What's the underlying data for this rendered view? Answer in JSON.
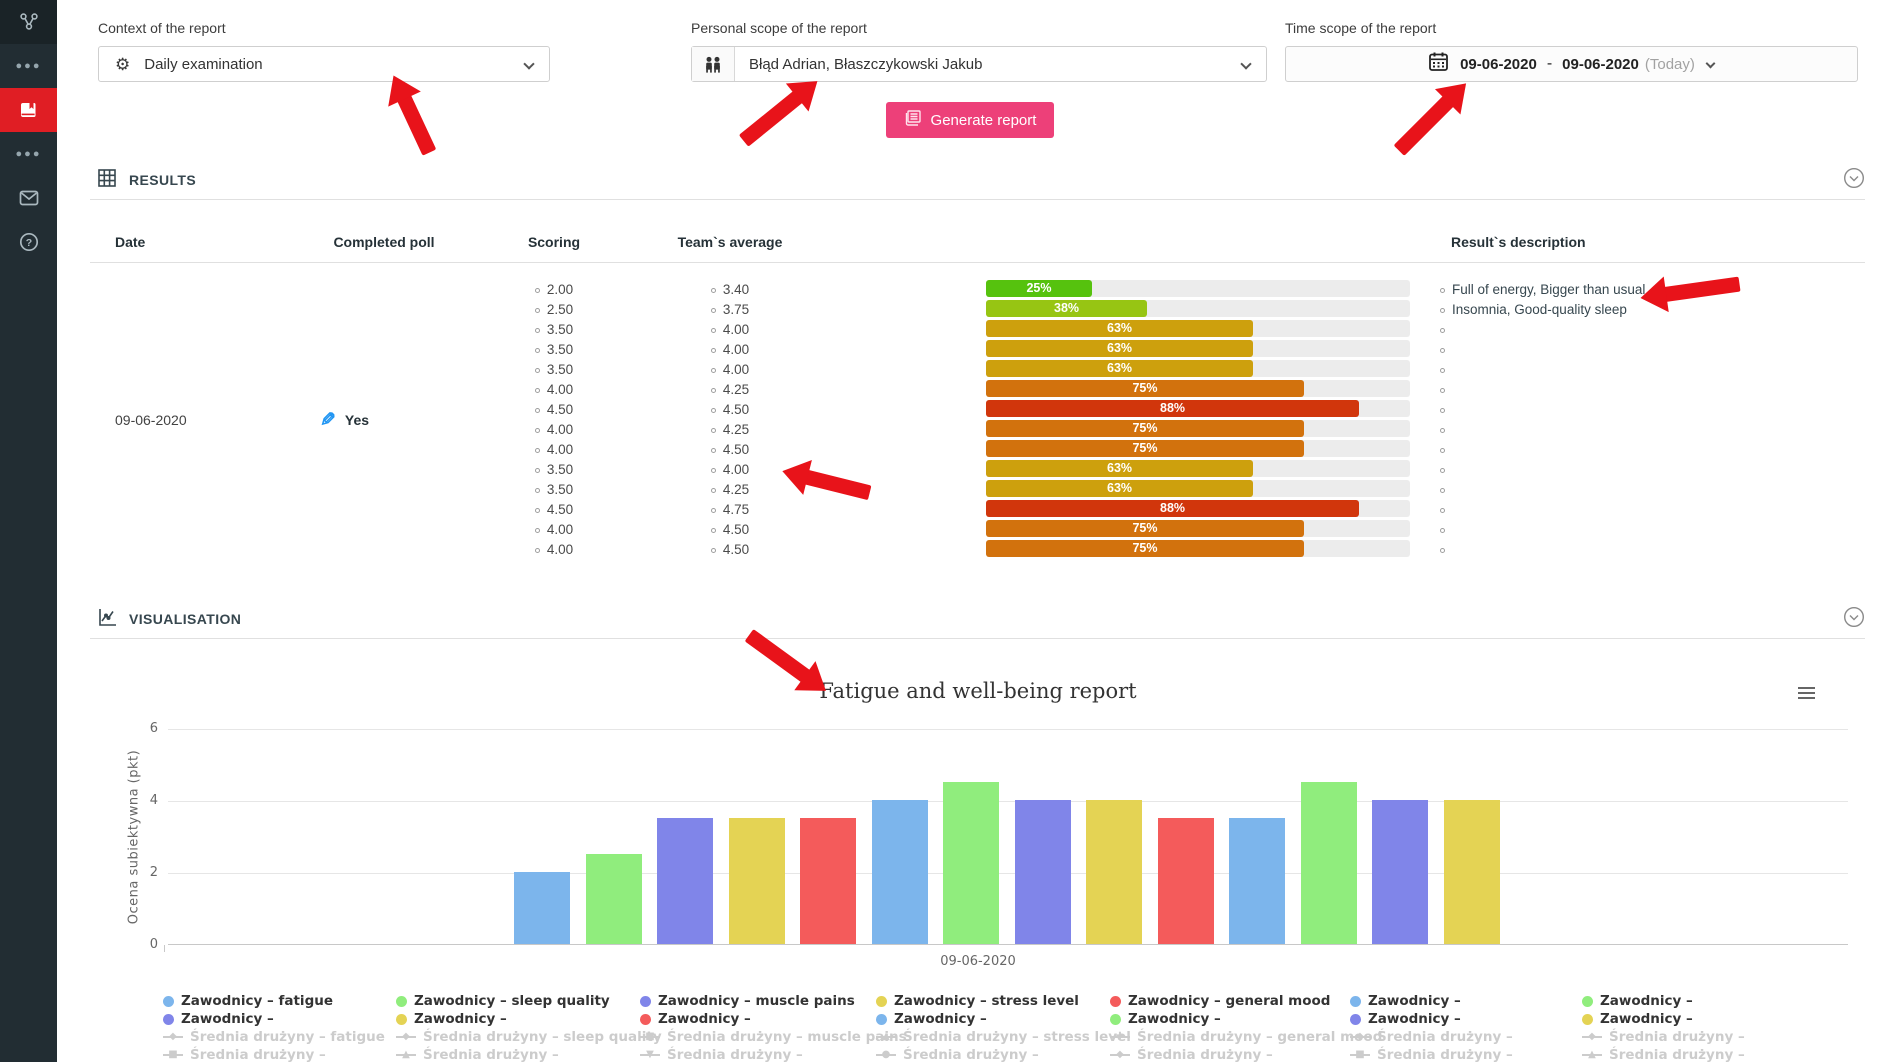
{
  "sidebar": {
    "items": [
      {
        "icon": "org-chart-icon"
      },
      {
        "icon": "ellipsis-icon"
      },
      {
        "icon": "reports-book-icon",
        "active": true
      },
      {
        "icon": "ellipsis-icon"
      },
      {
        "icon": "mail-icon"
      },
      {
        "icon": "help-icon"
      }
    ],
    "active_color": "#e01e24"
  },
  "filters": {
    "context": {
      "label": "Context of the report",
      "value": "Daily examination",
      "icon": "gear-icon"
    },
    "personal": {
      "label": "Personal scope of the report",
      "value": "Błąd Adrian, Błaszczykowski Jakub",
      "icon": "people-icon"
    },
    "time": {
      "label": "Time scope of the report",
      "from": "09-06-2020",
      "separator": "-",
      "to": "09-06-2020",
      "suffix": "(Today)",
      "icon": "calendar-icon"
    },
    "generate_label": "Generate report",
    "generate_color": "#ed4079"
  },
  "results": {
    "section_title": "RESULTS",
    "columns": [
      "Date",
      "Completed poll",
      "Scoring",
      "Team`s average",
      "Result`s description"
    ],
    "row": {
      "date": "09-06-2020",
      "completed": "Yes"
    },
    "entries": [
      {
        "scoring": "2.00",
        "team_avg": "3.40",
        "pct": 25,
        "color": "#56c20e",
        "description": "Full of energy, Bigger than usual"
      },
      {
        "scoring": "2.50",
        "team_avg": "3.75",
        "pct": 38,
        "color": "#97c513",
        "description": "Insomnia, Good-quality sleep"
      },
      {
        "scoring": "3.50",
        "team_avg": "4.00",
        "pct": 63,
        "color": "#cda00d",
        "description": ""
      },
      {
        "scoring": "3.50",
        "team_avg": "4.00",
        "pct": 63,
        "color": "#cda00d",
        "description": ""
      },
      {
        "scoring": "3.50",
        "team_avg": "4.00",
        "pct": 63,
        "color": "#cda00d",
        "description": ""
      },
      {
        "scoring": "4.00",
        "team_avg": "4.25",
        "pct": 75,
        "color": "#d2720d",
        "description": ""
      },
      {
        "scoring": "4.50",
        "team_avg": "4.50",
        "pct": 88,
        "color": "#d1360c",
        "description": ""
      },
      {
        "scoring": "4.00",
        "team_avg": "4.25",
        "pct": 75,
        "color": "#d2720d",
        "description": ""
      },
      {
        "scoring": "4.00",
        "team_avg": "4.50",
        "pct": 75,
        "color": "#d2720d",
        "description": ""
      },
      {
        "scoring": "3.50",
        "team_avg": "4.00",
        "pct": 63,
        "color": "#cda00d",
        "description": ""
      },
      {
        "scoring": "3.50",
        "team_avg": "4.25",
        "pct": 63,
        "color": "#cda00d",
        "description": ""
      },
      {
        "scoring": "4.50",
        "team_avg": "4.75",
        "pct": 88,
        "color": "#d1360c",
        "description": ""
      },
      {
        "scoring": "4.00",
        "team_avg": "4.50",
        "pct": 75,
        "color": "#d2720d",
        "description": ""
      },
      {
        "scoring": "4.00",
        "team_avg": "4.50",
        "pct": 75,
        "color": "#d2720d",
        "description": ""
      }
    ]
  },
  "visualisation": {
    "section_title": "VISUALISATION",
    "chart_data": {
      "type": "bar",
      "title": "Fatigue and well-being report",
      "ylabel": "Ocena subiektywna (pkt)",
      "xlabel": "",
      "category": "09-06-2020",
      "ylim": [
        0,
        6
      ],
      "yticks": [
        0,
        2,
        4,
        6
      ],
      "grid": true,
      "legend_position": "bottom",
      "bars": [
        {
          "value": 2.0,
          "color": "#7cb5ec"
        },
        {
          "value": 2.5,
          "color": "#90ed7d"
        },
        {
          "value": 3.5,
          "color": "#8085e9"
        },
        {
          "value": 3.5,
          "color": "#e4d354"
        },
        {
          "value": 3.5,
          "color": "#f45b5b"
        },
        {
          "value": 4.0,
          "color": "#7cb5ec"
        },
        {
          "value": 4.5,
          "color": "#90ed7d"
        },
        {
          "value": 4.0,
          "color": "#8085e9"
        },
        {
          "value": 4.0,
          "color": "#e4d354"
        },
        {
          "value": 3.5,
          "color": "#f45b5b"
        },
        {
          "value": 3.5,
          "color": "#7cb5ec"
        },
        {
          "value": 4.5,
          "color": "#90ed7d"
        },
        {
          "value": 4.0,
          "color": "#8085e9"
        },
        {
          "value": 4.0,
          "color": "#e4d354"
        }
      ],
      "legend_columns": [
        {
          "items": [
            {
              "label": "Zawodnicy – fatigue",
              "marker": "circle",
              "color": "#7cb5ec",
              "enabled": true
            },
            {
              "label": "Zawodnicy –",
              "marker": "circle",
              "color": "#8085e9",
              "enabled": true
            },
            {
              "label": "Średnia drużyny – fatigue",
              "marker": "diamond",
              "enabled": false
            },
            {
              "label": "Średnia drużyny –",
              "marker": "square",
              "enabled": false
            }
          ]
        },
        {
          "items": [
            {
              "label": "Zawodnicy – sleep quality",
              "marker": "circle",
              "color": "#90ed7d",
              "enabled": true
            },
            {
              "label": "Zawodnicy –",
              "marker": "circle",
              "color": "#e4d354",
              "enabled": true
            },
            {
              "label": "Średnia drużyny – sleep quality",
              "marker": "diamond",
              "enabled": false
            },
            {
              "label": "Średnia drużyny –",
              "marker": "triangle",
              "enabled": false
            }
          ]
        },
        {
          "items": [
            {
              "label": "Zawodnicy – muscle pains",
              "marker": "circle",
              "color": "#8085e9",
              "enabled": true
            },
            {
              "label": "Zawodnicy –",
              "marker": "circle",
              "color": "#f45b5b",
              "enabled": true
            },
            {
              "label": "Średnia drużyny – muscle pains",
              "marker": "square",
              "enabled": false
            },
            {
              "label": "Średnia drużyny –",
              "marker": "triangle-down",
              "enabled": false
            }
          ]
        },
        {
          "items": [
            {
              "label": "Zawodnicy – stress level",
              "marker": "circle",
              "color": "#e4d354",
              "enabled": true
            },
            {
              "label": "Zawodnicy –",
              "marker": "circle",
              "color": "#7cb5ec",
              "enabled": true
            },
            {
              "label": "Średnia drużyny – stress level",
              "marker": "triangle",
              "enabled": false
            },
            {
              "label": "Średnia drużyny –",
              "marker": "circle",
              "enabled": false
            }
          ]
        },
        {
          "items": [
            {
              "label": "Zawodnicy – general mood",
              "marker": "circle",
              "color": "#f45b5b",
              "enabled": true
            },
            {
              "label": "Zawodnicy –",
              "marker": "circle",
              "color": "#90ed7d",
              "enabled": true
            },
            {
              "label": "Średnia drużyny – general mood",
              "marker": "cross",
              "enabled": false
            },
            {
              "label": "Średnia drużyny –",
              "marker": "diamond",
              "enabled": false
            }
          ]
        },
        {
          "items": [
            {
              "label": "Zawodnicy –",
              "marker": "circle",
              "color": "#7cb5ec",
              "enabled": true
            },
            {
              "label": "Zawodnicy –",
              "marker": "circle",
              "color": "#8085e9",
              "enabled": true
            },
            {
              "label": "Średnia drużyny –",
              "marker": "diamond",
              "enabled": false
            },
            {
              "label": "Średnia drużyny –",
              "marker": "square",
              "enabled": false
            }
          ]
        },
        {
          "items": [
            {
              "label": "Zawodnicy –",
              "marker": "circle",
              "color": "#90ed7d",
              "enabled": true
            },
            {
              "label": "Zawodnicy –",
              "marker": "circle",
              "color": "#e4d354",
              "enabled": true
            },
            {
              "label": "Średnia drużyny –",
              "marker": "diamond",
              "enabled": false
            },
            {
              "label": "Średnia drużyny –",
              "marker": "triangle",
              "enabled": false
            }
          ]
        }
      ]
    }
  }
}
